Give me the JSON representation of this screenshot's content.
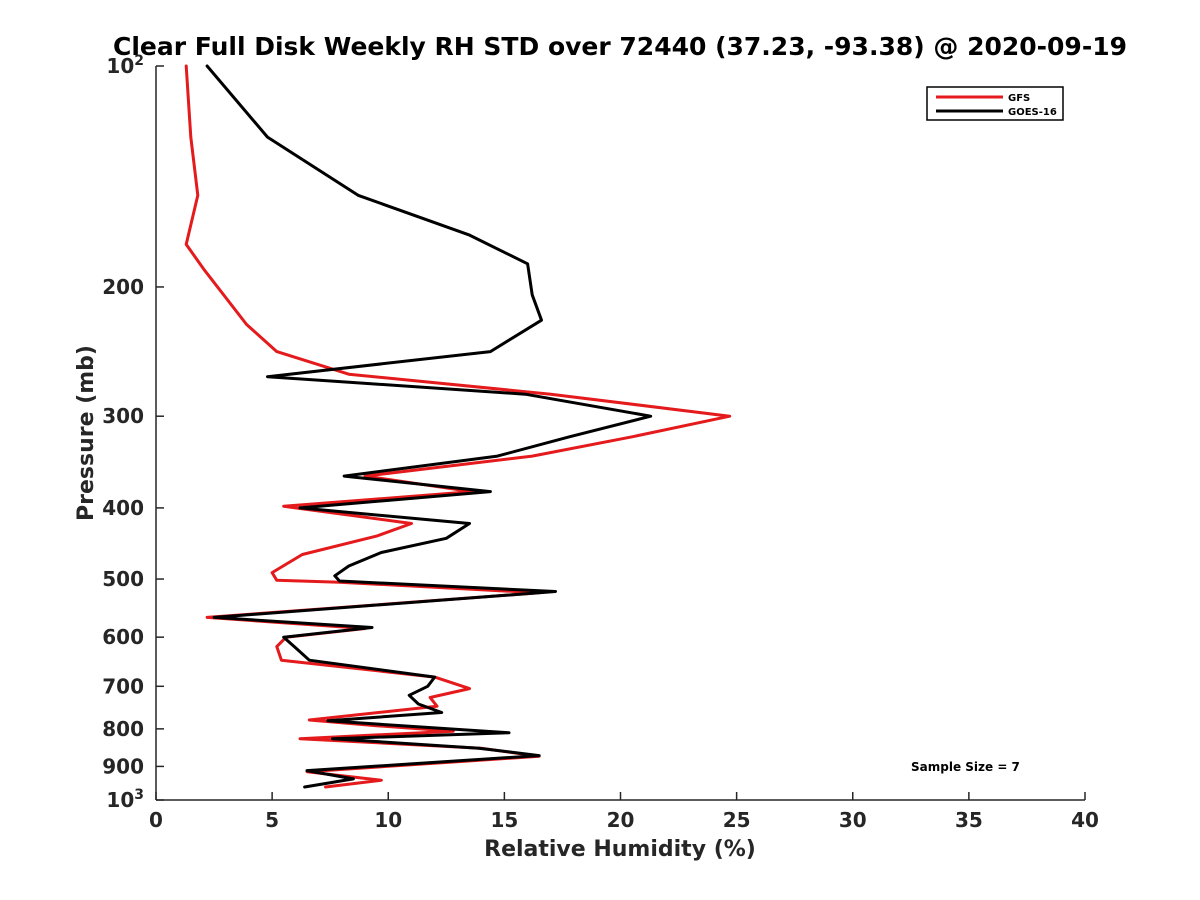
{
  "chart_data": {
    "type": "line",
    "title": "Clear Full Disk Weekly RH STD over 72440 (37.23, -93.38) @ 2020-09-19",
    "xlabel": "Relative Humidity (%)",
    "ylabel": "Pressure (mb)",
    "xlim": [
      0,
      40
    ],
    "ylim": [
      100,
      1000
    ],
    "y_scale": "log",
    "y_reversed": true,
    "x_ticks": [
      "0",
      "5",
      "10",
      "15",
      "20",
      "25",
      "30",
      "35",
      "40"
    ],
    "y_ticks": [
      {
        "value": 100,
        "base": "10",
        "exp": "2"
      },
      {
        "value": 200,
        "label": "200"
      },
      {
        "value": 300,
        "label": "300"
      },
      {
        "value": 400,
        "label": "400"
      },
      {
        "value": 500,
        "label": "500"
      },
      {
        "value": 600,
        "label": "600"
      },
      {
        "value": 700,
        "label": "700"
      },
      {
        "value": 800,
        "label": "800"
      },
      {
        "value": 900,
        "label": "900"
      },
      {
        "value": 1000,
        "base": "10",
        "exp": "3"
      }
    ],
    "grid": false,
    "legend_position": "top-right",
    "annotation": "Sample Size = 7",
    "series": [
      {
        "name": "GFS",
        "color": "#e41a1c",
        "points": [
          [
            1.3,
            100
          ],
          [
            1.5,
            125
          ],
          [
            1.8,
            150
          ],
          [
            1.3,
            175
          ],
          [
            2.1,
            190
          ],
          [
            3.9,
            225
          ],
          [
            5.2,
            245
          ],
          [
            8.3,
            263
          ],
          [
            17.0,
            280
          ],
          [
            24.7,
            300
          ],
          [
            20.5,
            320
          ],
          [
            16.2,
            340
          ],
          [
            9.0,
            362
          ],
          [
            13.6,
            380
          ],
          [
            5.5,
            398
          ],
          [
            11.0,
            420
          ],
          [
            9.5,
            437
          ],
          [
            6.3,
            463
          ],
          [
            5.0,
            490
          ],
          [
            5.2,
            502
          ],
          [
            7.9,
            505
          ],
          [
            16.5,
            522
          ],
          [
            2.2,
            564
          ],
          [
            9.0,
            584
          ],
          [
            5.6,
            600
          ],
          [
            5.2,
            618
          ],
          [
            5.4,
            645
          ],
          [
            12.0,
            680
          ],
          [
            13.5,
            705
          ],
          [
            11.8,
            725
          ],
          [
            12.1,
            745
          ],
          [
            6.6,
            778
          ],
          [
            9.5,
            792
          ],
          [
            12.8,
            806
          ],
          [
            6.2,
            825
          ],
          [
            14.0,
            850
          ],
          [
            16.5,
            872
          ],
          [
            6.5,
            915
          ],
          [
            9.7,
            940
          ],
          [
            7.3,
            960
          ]
        ]
      },
      {
        "name": "GOES-16",
        "color": "#000000",
        "points": [
          [
            2.2,
            100
          ],
          [
            4.8,
            125
          ],
          [
            8.7,
            150
          ],
          [
            13.5,
            170
          ],
          [
            16.0,
            186
          ],
          [
            16.2,
            205
          ],
          [
            16.6,
            222
          ],
          [
            14.4,
            245
          ],
          [
            4.8,
            265
          ],
          [
            15.9,
            280
          ],
          [
            21.3,
            300
          ],
          [
            17.8,
            320
          ],
          [
            14.7,
            340
          ],
          [
            8.1,
            362
          ],
          [
            14.4,
            380
          ],
          [
            6.2,
            400
          ],
          [
            13.5,
            420
          ],
          [
            12.5,
            440
          ],
          [
            9.7,
            460
          ],
          [
            8.3,
            480
          ],
          [
            7.7,
            495
          ],
          [
            7.9,
            503
          ],
          [
            17.2,
            520
          ],
          [
            2.5,
            564
          ],
          [
            9.3,
            582
          ],
          [
            5.5,
            600
          ],
          [
            6.0,
            620
          ],
          [
            6.6,
            645
          ],
          [
            12.0,
            680
          ],
          [
            11.7,
            700
          ],
          [
            10.9,
            720
          ],
          [
            11.3,
            740
          ],
          [
            12.3,
            760
          ],
          [
            7.4,
            780
          ],
          [
            15.2,
            810
          ],
          [
            7.6,
            825
          ],
          [
            13.9,
            850
          ],
          [
            16.5,
            870
          ],
          [
            6.5,
            912
          ],
          [
            8.5,
            936
          ],
          [
            6.4,
            960
          ]
        ]
      }
    ]
  }
}
